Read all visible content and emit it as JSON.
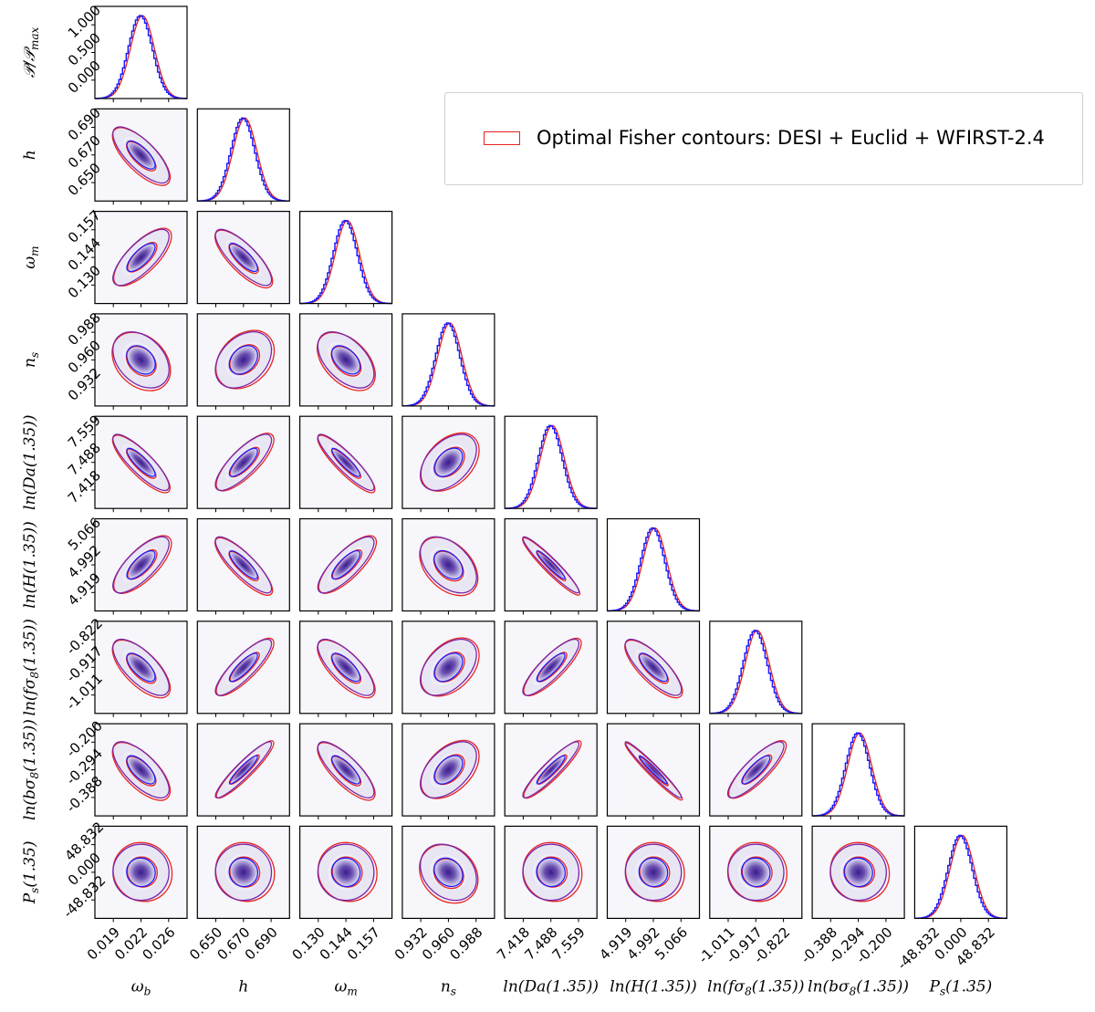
{
  "chart_data": {
    "type": "corner",
    "legend": {
      "label": "Optimal Fisher contours: DESI + Euclid + WFIRST-2.4",
      "placement": "top-right",
      "color": "#e8231f"
    },
    "colors": {
      "fisher": "#e8231f",
      "mcmc": "#1a1aff",
      "overlap": "#7a26a8",
      "density_dark": "#3b1c8c",
      "density_light": "#f7f6fb"
    },
    "diagonal_ylabel": "𝒫/𝒫max",
    "diagonal_yticks": [
      "0.000",
      "0.500",
      "1.000"
    ],
    "parameters": [
      {
        "key": "wb",
        "label": "ωb",
        "ticks": [
          "0.019",
          "0.022",
          "0.026"
        ],
        "x_label": "ωb",
        "y_label": "ωb"
      },
      {
        "key": "h",
        "label": "h",
        "ticks": [
          "0.650",
          "0.670",
          "0.690"
        ],
        "x_label": "h",
        "y_label": "h"
      },
      {
        "key": "wm",
        "label": "ωm",
        "ticks": [
          "0.130",
          "0.144",
          "0.157"
        ],
        "x_label": "ωm",
        "y_label": "ωm"
      },
      {
        "key": "ns",
        "label": "ns",
        "ticks": [
          "0.932",
          "0.960",
          "0.988"
        ],
        "x_label": "ns",
        "y_label": "ns"
      },
      {
        "key": "lnDa",
        "label": "ln(Da(1.35))",
        "ticks": [
          "7.418",
          "7.488",
          "7.559"
        ],
        "x_label": "ln(Da(1.35))",
        "y_label": "ln(Da(1.35))"
      },
      {
        "key": "lnH",
        "label": "ln(H(1.35))",
        "ticks": [
          "4.919",
          "4.992",
          "5.066"
        ],
        "x_label": "ln(H(1.35))",
        "y_label": "ln(H(1.35))"
      },
      {
        "key": "lnfs8",
        "label": "ln(fσ8(1.35))",
        "ticks": [
          "-1.011",
          "-0.917",
          "-0.822"
        ],
        "x_label": "ln(fσ8(1.35))",
        "y_label": "ln(fσ8(1.35))"
      },
      {
        "key": "lnbs8",
        "label": "ln(bσ8(1.35))",
        "ticks": [
          "-0.388",
          "-0.294",
          "-0.200"
        ],
        "x_label": "ln(bσ8(1.35))",
        "y_label": "ln(bσ8(1.35))"
      },
      {
        "key": "Ps",
        "label": "Ps(1.35)",
        "ticks": [
          "-48.832",
          "0.000",
          "48.832"
        ],
        "x_label": "Ps(1.35)",
        "y_label": "Ps(1.35)"
      }
    ],
    "correlations": [
      [
        1.0,
        -0.75,
        0.75,
        -0.35,
        -0.85,
        0.75,
        -0.7,
        -0.7,
        0.0
      ],
      [
        -0.75,
        1.0,
        -0.8,
        0.35,
        0.8,
        -0.85,
        0.85,
        0.93,
        0.0
      ],
      [
        0.75,
        -0.8,
        1.0,
        -0.5,
        -0.9,
        0.8,
        -0.75,
        -0.8,
        0.0
      ],
      [
        -0.35,
        0.35,
        -0.5,
        1.0,
        0.45,
        -0.45,
        0.45,
        0.5,
        -0.25
      ],
      [
        -0.85,
        0.8,
        -0.9,
        0.45,
        1.0,
        -0.95,
        0.85,
        0.92,
        0.0
      ],
      [
        0.75,
        -0.85,
        0.8,
        -0.45,
        -0.95,
        1.0,
        -0.8,
        -0.97,
        0.0
      ],
      [
        -0.7,
        0.85,
        -0.75,
        0.45,
        0.85,
        -0.8,
        1.0,
        0.85,
        0.0
      ],
      [
        -0.7,
        0.93,
        -0.8,
        0.5,
        0.92,
        -0.97,
        0.85,
        1.0,
        0.0
      ],
      [
        0.0,
        0.0,
        0.0,
        -0.25,
        0.0,
        0.0,
        0.0,
        0.0,
        1.0
      ]
    ],
    "contour_levels": [
      "1-sigma",
      "2-sigma"
    ],
    "marginal_peak": 1.0,
    "marginal_shift_sigma": 0.12
  }
}
